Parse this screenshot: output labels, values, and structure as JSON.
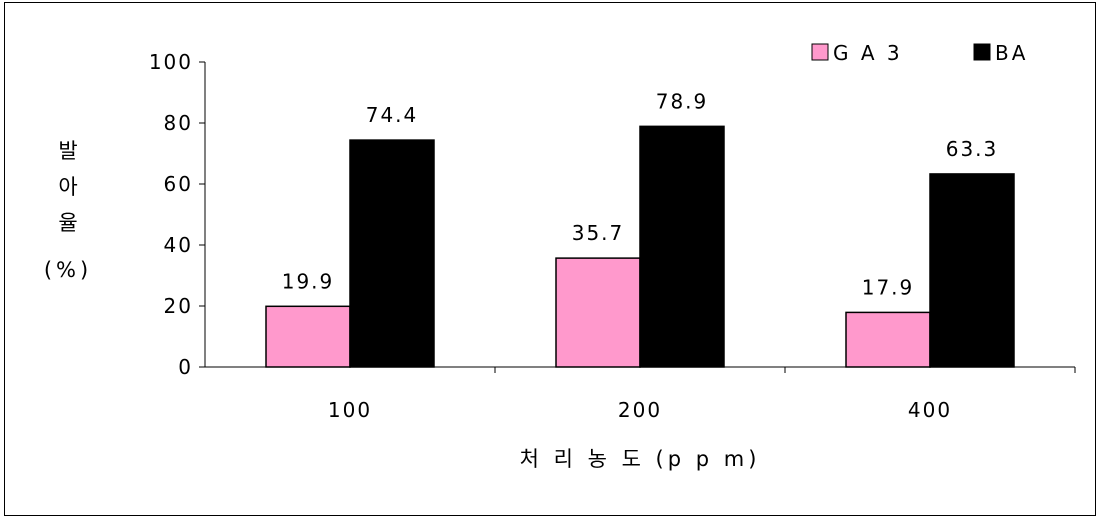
{
  "chart_data": {
    "type": "bar",
    "categories": [
      "100",
      "200",
      "400"
    ],
    "series": [
      {
        "name": "GA3",
        "legend_label": "G A 3",
        "color": "#ff99cc",
        "values": [
          19.9,
          35.7,
          17.9
        ],
        "labels": [
          "19.9",
          "35.7",
          "17.9"
        ]
      },
      {
        "name": "BA",
        "legend_label": "BA",
        "color": "#000000",
        "values": [
          74.4,
          78.9,
          63.3
        ],
        "labels": [
          "74.4",
          "78.9",
          "63.3"
        ]
      }
    ],
    "xlabel": "처 리 농 도 (p p m)",
    "ylabel_lines": [
      "발",
      "아",
      "율",
      "(%)"
    ],
    "ylim": [
      0,
      100
    ],
    "yticks": [
      "0",
      "20",
      "40",
      "60",
      "80",
      "100"
    ],
    "grid": false,
    "legend_position": "top-right"
  }
}
